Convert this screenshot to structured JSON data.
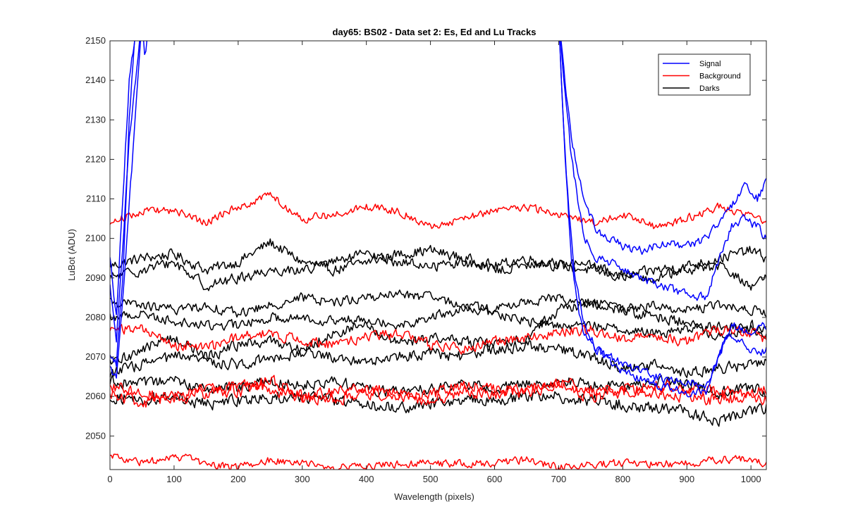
{
  "chart_data": {
    "type": "line",
    "title": "day65: BS02 - Data set 2: Es, Ed and Lu Tracks",
    "xlabel": "Wavelength (pixels)",
    "ylabel": "LuBot (ADU)",
    "xlim": [
      0,
      1024
    ],
    "ylim": [
      2041.5,
      2150
    ],
    "x_ticks": [
      0,
      100,
      200,
      300,
      400,
      500,
      600,
      700,
      800,
      900,
      1000
    ],
    "x_tick_labels": [
      "0",
      "100",
      "200",
      "300",
      "400",
      "500",
      "600",
      "700",
      "800",
      "900",
      "1000"
    ],
    "y_ticks": [
      2050,
      2060,
      2070,
      2080,
      2090,
      2100,
      2110,
      2120,
      2130,
      2140,
      2150
    ],
    "y_tick_labels": [
      "2050",
      "2060",
      "2070",
      "2080",
      "2090",
      "2100",
      "2110",
      "2120",
      "2130",
      "2140",
      "2150"
    ],
    "grid": false,
    "legend": {
      "position": "top-right",
      "entries": [
        {
          "label": "Signal",
          "color": "#0000ff"
        },
        {
          "label": "Background",
          "color": "#ff0000"
        },
        {
          "label": "Darks",
          "color": "#000000"
        }
      ]
    },
    "series": [
      {
        "name": "Signal 1",
        "group": "Signal",
        "color": "#0000ff",
        "x": [
          0,
          10,
          20,
          30,
          40,
          50,
          55,
          60,
          700,
          720,
          740,
          760,
          780,
          800,
          830,
          860,
          900,
          930,
          950,
          970,
          990,
          1010,
          1024
        ],
        "y": [
          2095,
          2080,
          2110,
          2140,
          2152,
          2155,
          2145,
          2155,
          2155,
          2125,
          2110,
          2102,
          2100,
          2098,
          2097,
          2099,
          2098,
          2100,
          2104,
          2108,
          2113,
          2110,
          2115
        ],
        "noise": 1.0
      },
      {
        "name": "Signal 2",
        "group": "Signal",
        "color": "#0000ff",
        "x": [
          0,
          10,
          20,
          30,
          40,
          50,
          60,
          700,
          720,
          740,
          760,
          780,
          800,
          830,
          860,
          900,
          930,
          950,
          970,
          990,
          1010,
          1024
        ],
        "y": [
          2088,
          2075,
          2098,
          2125,
          2140,
          2155,
          2155,
          2155,
          2120,
          2100,
          2095,
          2094,
          2092,
          2090,
          2088,
          2086,
          2085,
          2095,
          2103,
          2105,
          2103,
          2100
        ],
        "noise": 1.0
      },
      {
        "name": "Signal 3",
        "group": "Signal",
        "color": "#0000ff",
        "x": [
          0,
          10,
          20,
          30,
          40,
          700,
          710,
          720,
          730,
          740,
          760,
          800,
          850,
          900,
          930,
          950,
          970,
          1000,
          1024
        ],
        "y": [
          2070,
          2068,
          2090,
          2130,
          2155,
          2155,
          2120,
          2095,
          2082,
          2075,
          2072,
          2068,
          2065,
          2064,
          2062,
          2070,
          2078,
          2076,
          2078
        ],
        "noise": 1.0
      },
      {
        "name": "Signal 4",
        "group": "Signal",
        "color": "#0000ff",
        "x": [
          0,
          10,
          20,
          35,
          50,
          700,
          712,
          725,
          740,
          760,
          800,
          850,
          900,
          930,
          960,
          990,
          1010,
          1024
        ],
        "y": [
          2067,
          2065,
          2085,
          2120,
          2155,
          2155,
          2115,
          2090,
          2078,
          2072,
          2066,
          2063,
          2061,
          2061,
          2075,
          2074,
          2070,
          2072
        ],
        "noise": 1.0
      },
      {
        "name": "Background 1",
        "group": "Background",
        "color": "#ff0000",
        "x": [
          0,
          50,
          100,
          150,
          200,
          250,
          300,
          350,
          400,
          450,
          500,
          550,
          600,
          650,
          700,
          750,
          800,
          850,
          900,
          950,
          1000,
          1024
        ],
        "y": [
          2104,
          2107,
          2107,
          2104,
          2108,
          2111,
          2105,
          2106,
          2108,
          2107,
          2103,
          2105,
          2107,
          2108,
          2106,
          2104,
          2106,
          2103,
          2105,
          2108,
          2106,
          2104
        ],
        "noise": 0.9
      },
      {
        "name": "Background 2",
        "group": "Background",
        "color": "#ff0000",
        "x": [
          0,
          50,
          100,
          150,
          200,
          250,
          300,
          350,
          400,
          450,
          500,
          550,
          600,
          650,
          700,
          750,
          800,
          850,
          900,
          950,
          1000,
          1024
        ],
        "y": [
          2077,
          2077,
          2073,
          2072,
          2075,
          2076,
          2074,
          2073,
          2075,
          2076,
          2073,
          2072,
          2074,
          2075,
          2076,
          2077,
          2075,
          2075,
          2074,
          2077,
          2076,
          2074
        ],
        "noise": 1.2
      },
      {
        "name": "Background 3",
        "group": "Background",
        "color": "#ff0000",
        "x": [
          0,
          50,
          100,
          150,
          200,
          250,
          300,
          350,
          400,
          450,
          500,
          550,
          600,
          650,
          700,
          750,
          800,
          850,
          900,
          950,
          1000,
          1024
        ],
        "y": [
          2061,
          2058,
          2060,
          2062,
          2061,
          2064,
          2060,
          2059,
          2061,
          2060,
          2059,
          2061,
          2060,
          2062,
          2063,
          2060,
          2062,
          2061,
          2060,
          2059,
          2060,
          2059
        ],
        "noise": 1.4
      },
      {
        "name": "Background 4",
        "group": "Background",
        "color": "#ff0000",
        "x": [
          0,
          50,
          100,
          150,
          200,
          250,
          300,
          350,
          400,
          450,
          500,
          550,
          600,
          650,
          700,
          750,
          800,
          850,
          900,
          950,
          1000,
          1024
        ],
        "y": [
          2063,
          2061,
          2059,
          2061,
          2063,
          2062,
          2060,
          2061,
          2062,
          2061,
          2060,
          2063,
          2062,
          2061,
          2064,
          2062,
          2061,
          2063,
          2062,
          2061,
          2061,
          2062
        ],
        "noise": 1.4
      },
      {
        "name": "Background 5",
        "group": "Background",
        "color": "#ff0000",
        "x": [
          0,
          50,
          100,
          150,
          200,
          250,
          300,
          350,
          400,
          450,
          500,
          550,
          600,
          650,
          700,
          750,
          800,
          850,
          900,
          950,
          1000,
          1024
        ],
        "y": [
          2045,
          2043,
          2045,
          2043,
          2042,
          2044,
          2043,
          2042,
          2042,
          2043,
          2043,
          2043,
          2043,
          2044,
          2042,
          2043,
          2043,
          2043,
          2043,
          2044,
          2044,
          2043
        ],
        "noise": 0.9
      },
      {
        "name": "Darks 1",
        "group": "Darks",
        "color": "#000000",
        "x": [
          0,
          50,
          100,
          150,
          200,
          250,
          300,
          350,
          400,
          450,
          500,
          550,
          600,
          650,
          700,
          750,
          800,
          850,
          900,
          950,
          1000,
          1024
        ],
        "y": [
          2093,
          2095,
          2096,
          2092,
          2094,
          2099,
          2094,
          2092,
          2094,
          2096,
          2097,
          2095,
          2093,
          2095,
          2093,
          2092,
          2090,
          2092,
          2093,
          2095,
          2097,
          2095
        ],
        "noise": 1.2
      },
      {
        "name": "Darks 2",
        "group": "Darks",
        "color": "#000000",
        "x": [
          0,
          50,
          100,
          150,
          200,
          250,
          300,
          350,
          400,
          450,
          500,
          550,
          600,
          650,
          700,
          750,
          800,
          850,
          900,
          950,
          1000,
          1024
        ],
        "y": [
          2090,
          2092,
          2094,
          2088,
          2090,
          2092,
          2092,
          2094,
          2096,
          2094,
          2093,
          2094,
          2092,
          2093,
          2094,
          2093,
          2091,
          2090,
          2092,
          2093,
          2088,
          2090
        ],
        "noise": 1.2
      },
      {
        "name": "Darks 3",
        "group": "Darks",
        "color": "#000000",
        "x": [
          0,
          50,
          100,
          150,
          200,
          250,
          300,
          350,
          400,
          450,
          500,
          550,
          600,
          650,
          700,
          750,
          800,
          850,
          900,
          950,
          1000,
          1024
        ],
        "y": [
          2084,
          2083,
          2082,
          2083,
          2081,
          2083,
          2085,
          2084,
          2085,
          2086,
          2085,
          2083,
          2082,
          2084,
          2085,
          2083,
          2082,
          2083,
          2082,
          2083,
          2082,
          2081
        ],
        "noise": 1.1
      },
      {
        "name": "Darks 4",
        "group": "Darks",
        "color": "#000000",
        "x": [
          0,
          50,
          100,
          150,
          200,
          250,
          300,
          350,
          400,
          450,
          500,
          550,
          600,
          650,
          700,
          750,
          800,
          850,
          900,
          950,
          1000,
          1024
        ],
        "y": [
          2080,
          2081,
          2079,
          2078,
          2078,
          2080,
          2080,
          2079,
          2080,
          2078,
          2080,
          2082,
          2081,
          2079,
          2078,
          2078,
          2077,
          2076,
          2077,
          2078,
          2077,
          2075
        ],
        "noise": 1.1
      },
      {
        "name": "Darks 5",
        "group": "Darks",
        "color": "#000000",
        "x": [
          0,
          50,
          100,
          150,
          200,
          250,
          300,
          350,
          400,
          450,
          500,
          550,
          600,
          650,
          700,
          750,
          800,
          850,
          900,
          950,
          1000,
          1024
        ],
        "y": [
          2068,
          2072,
          2075,
          2070,
          2073,
          2074,
          2072,
          2076,
          2078,
          2073,
          2075,
          2074,
          2073,
          2075,
          2082,
          2084,
          2082,
          2080,
          2079,
          2075,
          2078,
          2077
        ],
        "noise": 1.3
      },
      {
        "name": "Darks 6",
        "group": "Darks",
        "color": "#000000",
        "x": [
          0,
          50,
          100,
          150,
          200,
          250,
          300,
          350,
          400,
          450,
          500,
          550,
          600,
          650,
          700,
          750,
          800,
          850,
          900,
          950,
          1000,
          1024
        ],
        "y": [
          2066,
          2068,
          2070,
          2069,
          2068,
          2070,
          2071,
          2070,
          2069,
          2070,
          2071,
          2070,
          2072,
          2073,
          2072,
          2070,
          2067,
          2068,
          2066,
          2067,
          2068,
          2069
        ],
        "noise": 1.3
      },
      {
        "name": "Darks 7",
        "group": "Darks",
        "color": "#000000",
        "x": [
          0,
          50,
          100,
          150,
          200,
          250,
          300,
          350,
          400,
          450,
          500,
          550,
          600,
          650,
          700,
          750,
          800,
          850,
          900,
          950,
          1000,
          1024
        ],
        "y": [
          2064,
          2063,
          2064,
          2062,
          2062,
          2064,
          2063,
          2064,
          2062,
          2061,
          2062,
          2063,
          2062,
          2063,
          2064,
          2063,
          2062,
          2064,
          2063,
          2061,
          2062,
          2061
        ],
        "noise": 1.3
      },
      {
        "name": "Darks 8",
        "group": "Darks",
        "color": "#000000",
        "x": [
          0,
          50,
          100,
          150,
          200,
          250,
          300,
          350,
          400,
          450,
          500,
          550,
          600,
          650,
          700,
          750,
          800,
          850,
          900,
          950,
          1000,
          1024
        ],
        "y": [
          2060,
          2059,
          2060,
          2058,
          2059,
          2060,
          2060,
          2059,
          2058,
          2057,
          2058,
          2059,
          2059,
          2060,
          2060,
          2059,
          2058,
          2057,
          2056,
          2054,
          2056,
          2057
        ],
        "noise": 1.4
      }
    ]
  }
}
